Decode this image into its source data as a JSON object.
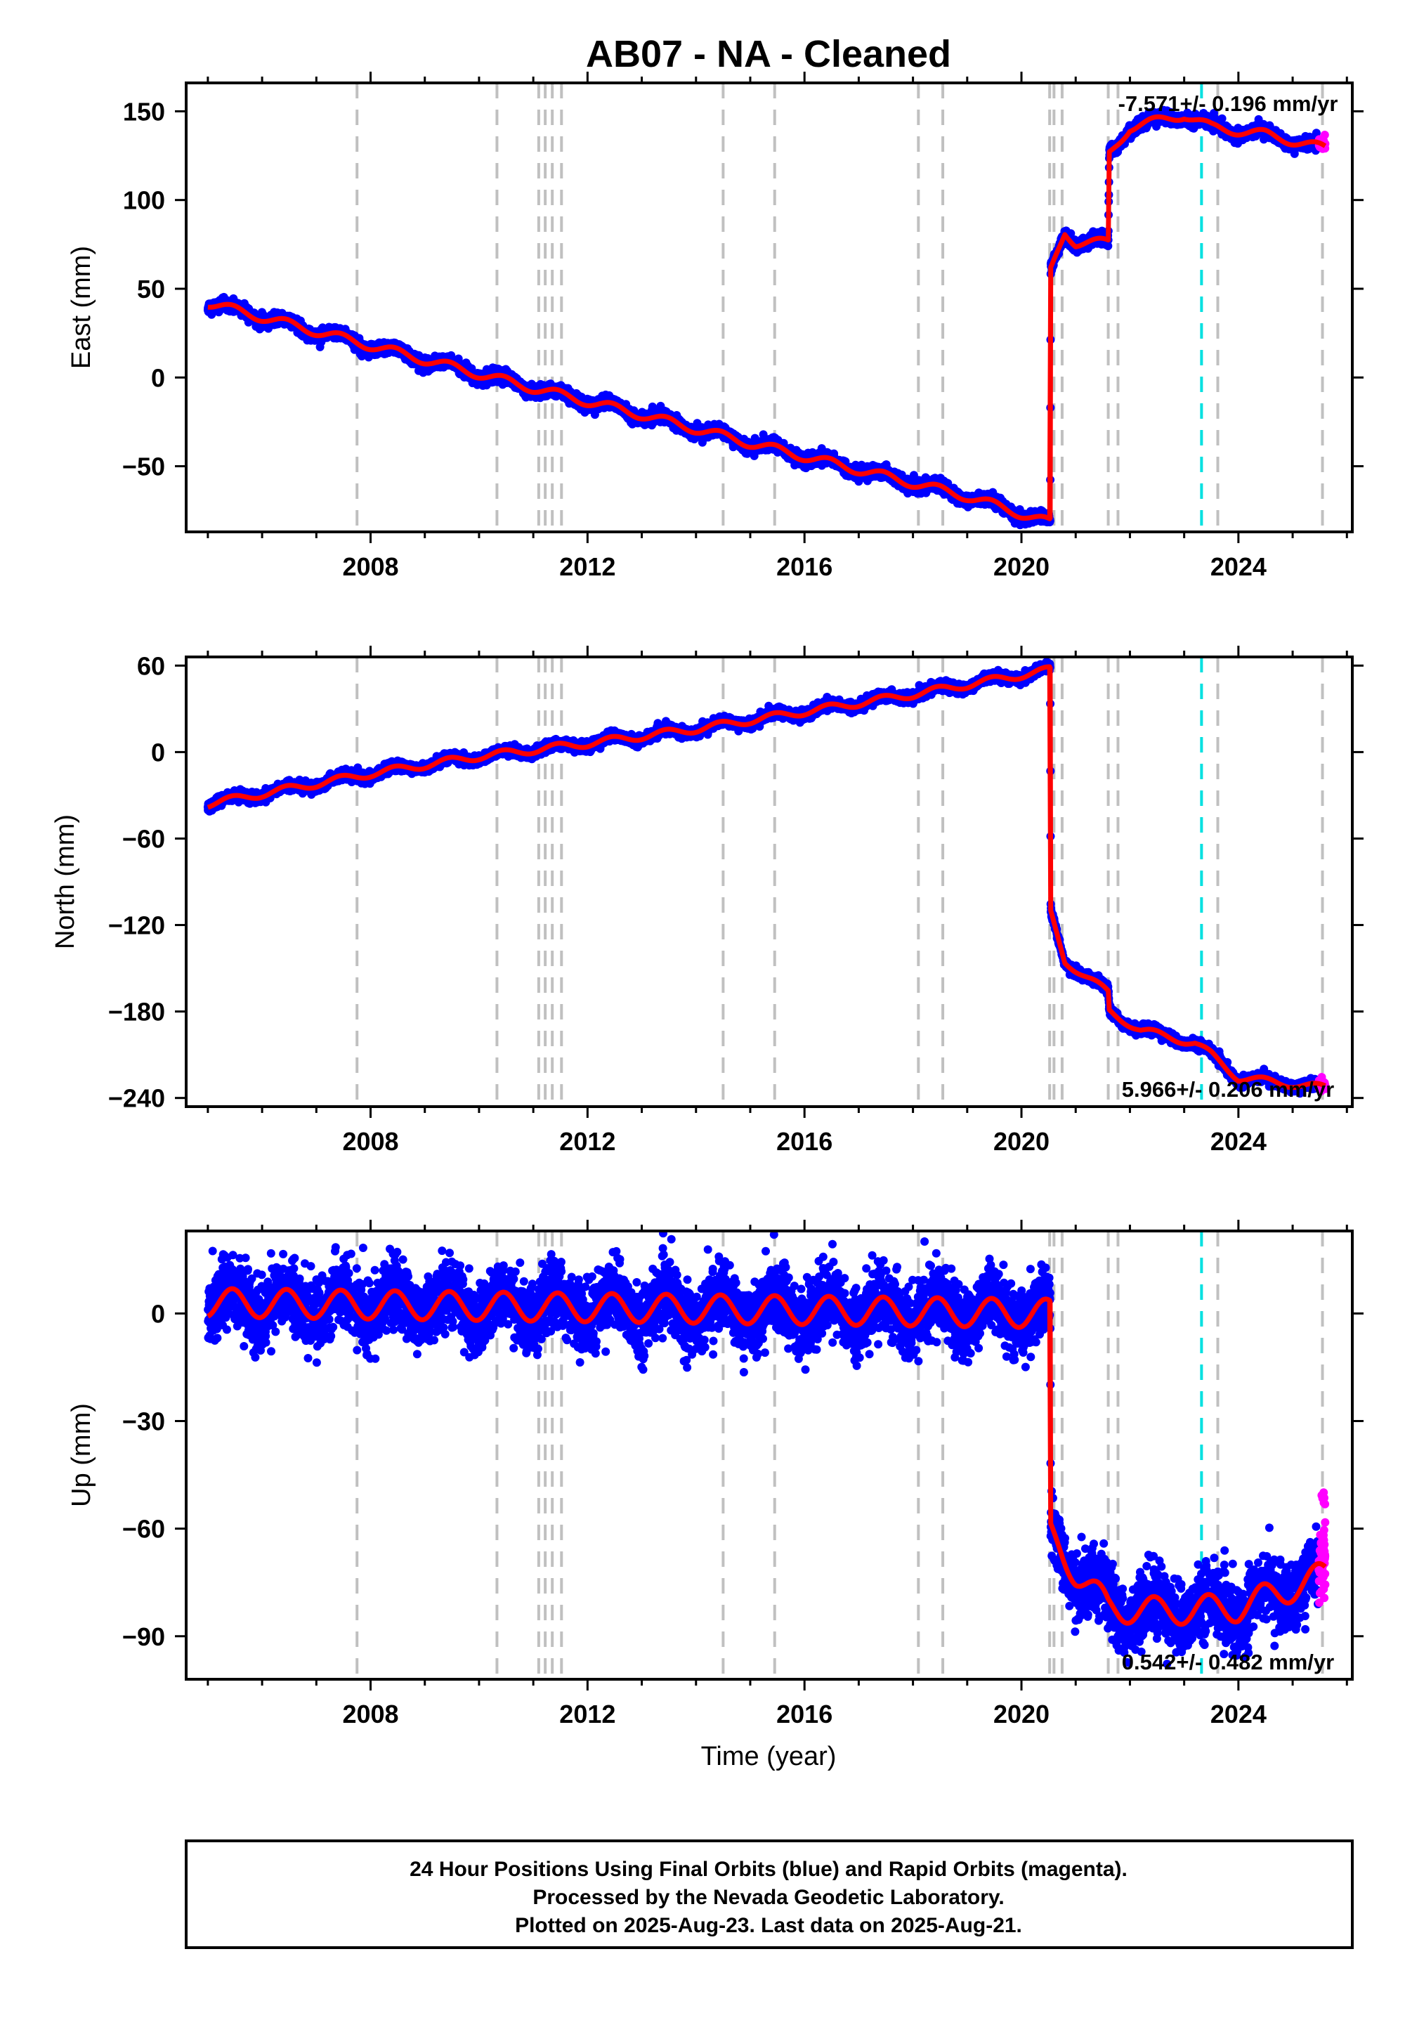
{
  "title": "AB07  - NA - Cleaned",
  "xlabel": "Time (year)",
  "footer_lines": [
    "24 Hour Positions Using Final Orbits (blue) and Rapid Orbits (magenta).",
    "Processed by the Nevada Geodetic Laboratory.",
    "Plotted on 2025-Aug-23. Last data on 2025-Aug-21."
  ],
  "colors": {
    "final_orbits": "#0000ff",
    "rapid_orbits": "#ff00ff",
    "model": "#ff0000",
    "event_grey": "#c0c0c0",
    "event_cyan": "#00e0e0"
  },
  "chart_data": [
    {
      "type": "scatter",
      "component": "east",
      "ylabel": "East (mm)",
      "rate_text": "-7.571+/- 0.196 mm/yr",
      "xlim": [
        2004.6,
        2026.1
      ],
      "ylim": [
        -87,
        166
      ],
      "xticks": [
        2008,
        2012,
        2016,
        2020,
        2024
      ],
      "yticks": [
        -50,
        0,
        50,
        100,
        150
      ],
      "grid": false,
      "model_anchor_points": [
        {
          "x": 2005.0,
          "y": 42
        },
        {
          "x": 2007.0,
          "y": 26
        },
        {
          "x": 2009.0,
          "y": 10
        },
        {
          "x": 2011.0,
          "y": -6
        },
        {
          "x": 2013.0,
          "y": -21
        },
        {
          "x": 2015.0,
          "y": -37
        },
        {
          "x": 2017.0,
          "y": -52
        },
        {
          "x": 2019.0,
          "y": -67
        },
        {
          "x": 2020.53,
          "y": -82
        },
        {
          "x": 2020.54,
          "y": 60
        },
        {
          "x": 2020.8,
          "y": 82
        },
        {
          "x": 2021.0,
          "y": 76
        },
        {
          "x": 2021.6,
          "y": 76
        },
        {
          "x": 2021.62,
          "y": 126
        },
        {
          "x": 2022.0,
          "y": 141
        },
        {
          "x": 2023.0,
          "y": 148
        },
        {
          "x": 2023.5,
          "y": 141
        },
        {
          "x": 2024.5,
          "y": 137
        },
        {
          "x": 2025.6,
          "y": 129
        }
      ],
      "seasonal_amplitude_mm": 2.5
    },
    {
      "type": "scatter",
      "component": "north",
      "ylabel": "North (mm)",
      "rate_text": "5.966+/- 0.206 mm/yr",
      "xlim": [
        2004.6,
        2026.1
      ],
      "ylim": [
        -246,
        66
      ],
      "xticks": [
        2008,
        2012,
        2016,
        2020,
        2024
      ],
      "yticks": [
        -240,
        -180,
        -120,
        -60,
        0,
        60
      ],
      "grid": false,
      "model_anchor_points": [
        {
          "x": 2005.0,
          "y": -36
        },
        {
          "x": 2008.0,
          "y": -15
        },
        {
          "x": 2010.0,
          "y": -3
        },
        {
          "x": 2012.0,
          "y": 6
        },
        {
          "x": 2014.0,
          "y": 16
        },
        {
          "x": 2016.0,
          "y": 28
        },
        {
          "x": 2018.0,
          "y": 40
        },
        {
          "x": 2020.53,
          "y": 57
        },
        {
          "x": 2020.54,
          "y": -112
        },
        {
          "x": 2020.8,
          "y": -145
        },
        {
          "x": 2021.6,
          "y": -167
        },
        {
          "x": 2021.62,
          "y": -180
        },
        {
          "x": 2022.2,
          "y": -193
        },
        {
          "x": 2023.2,
          "y": -202
        },
        {
          "x": 2023.5,
          "y": -210
        },
        {
          "x": 2024.0,
          "y": -226
        },
        {
          "x": 2025.6,
          "y": -233
        }
      ],
      "seasonal_amplitude_mm": 2.5
    },
    {
      "type": "scatter",
      "component": "up",
      "ylabel": "Up (mm)",
      "rate_text": "0.542+/- 0.482 mm/yr",
      "xlim": [
        2004.6,
        2026.1
      ],
      "ylim": [
        -102,
        23
      ],
      "xticks": [
        2008,
        2012,
        2016,
        2020,
        2024
      ],
      "yticks": [
        -90,
        -60,
        -30,
        0
      ],
      "grid": false,
      "model_anchor_points": [
        {
          "x": 2005.0,
          "y": 3
        },
        {
          "x": 2020.53,
          "y": 0
        },
        {
          "x": 2020.54,
          "y": -62
        },
        {
          "x": 2021.0,
          "y": -72
        },
        {
          "x": 2021.6,
          "y": -82
        },
        {
          "x": 2022.5,
          "y": -83
        },
        {
          "x": 2024.0,
          "y": -82
        },
        {
          "x": 2025.6,
          "y": -73
        }
      ],
      "seasonal_amplitude_mm": 4
    }
  ],
  "event_lines": {
    "grey_years": [
      2007.75,
      2010.33,
      2011.1,
      2011.22,
      2011.35,
      2011.52,
      2014.5,
      2015.45,
      2018.1,
      2018.55,
      2020.52,
      2020.6,
      2020.75,
      2021.6,
      2021.78,
      2023.62,
      2025.55
    ],
    "cyan_years": [
      2023.32
    ]
  }
}
